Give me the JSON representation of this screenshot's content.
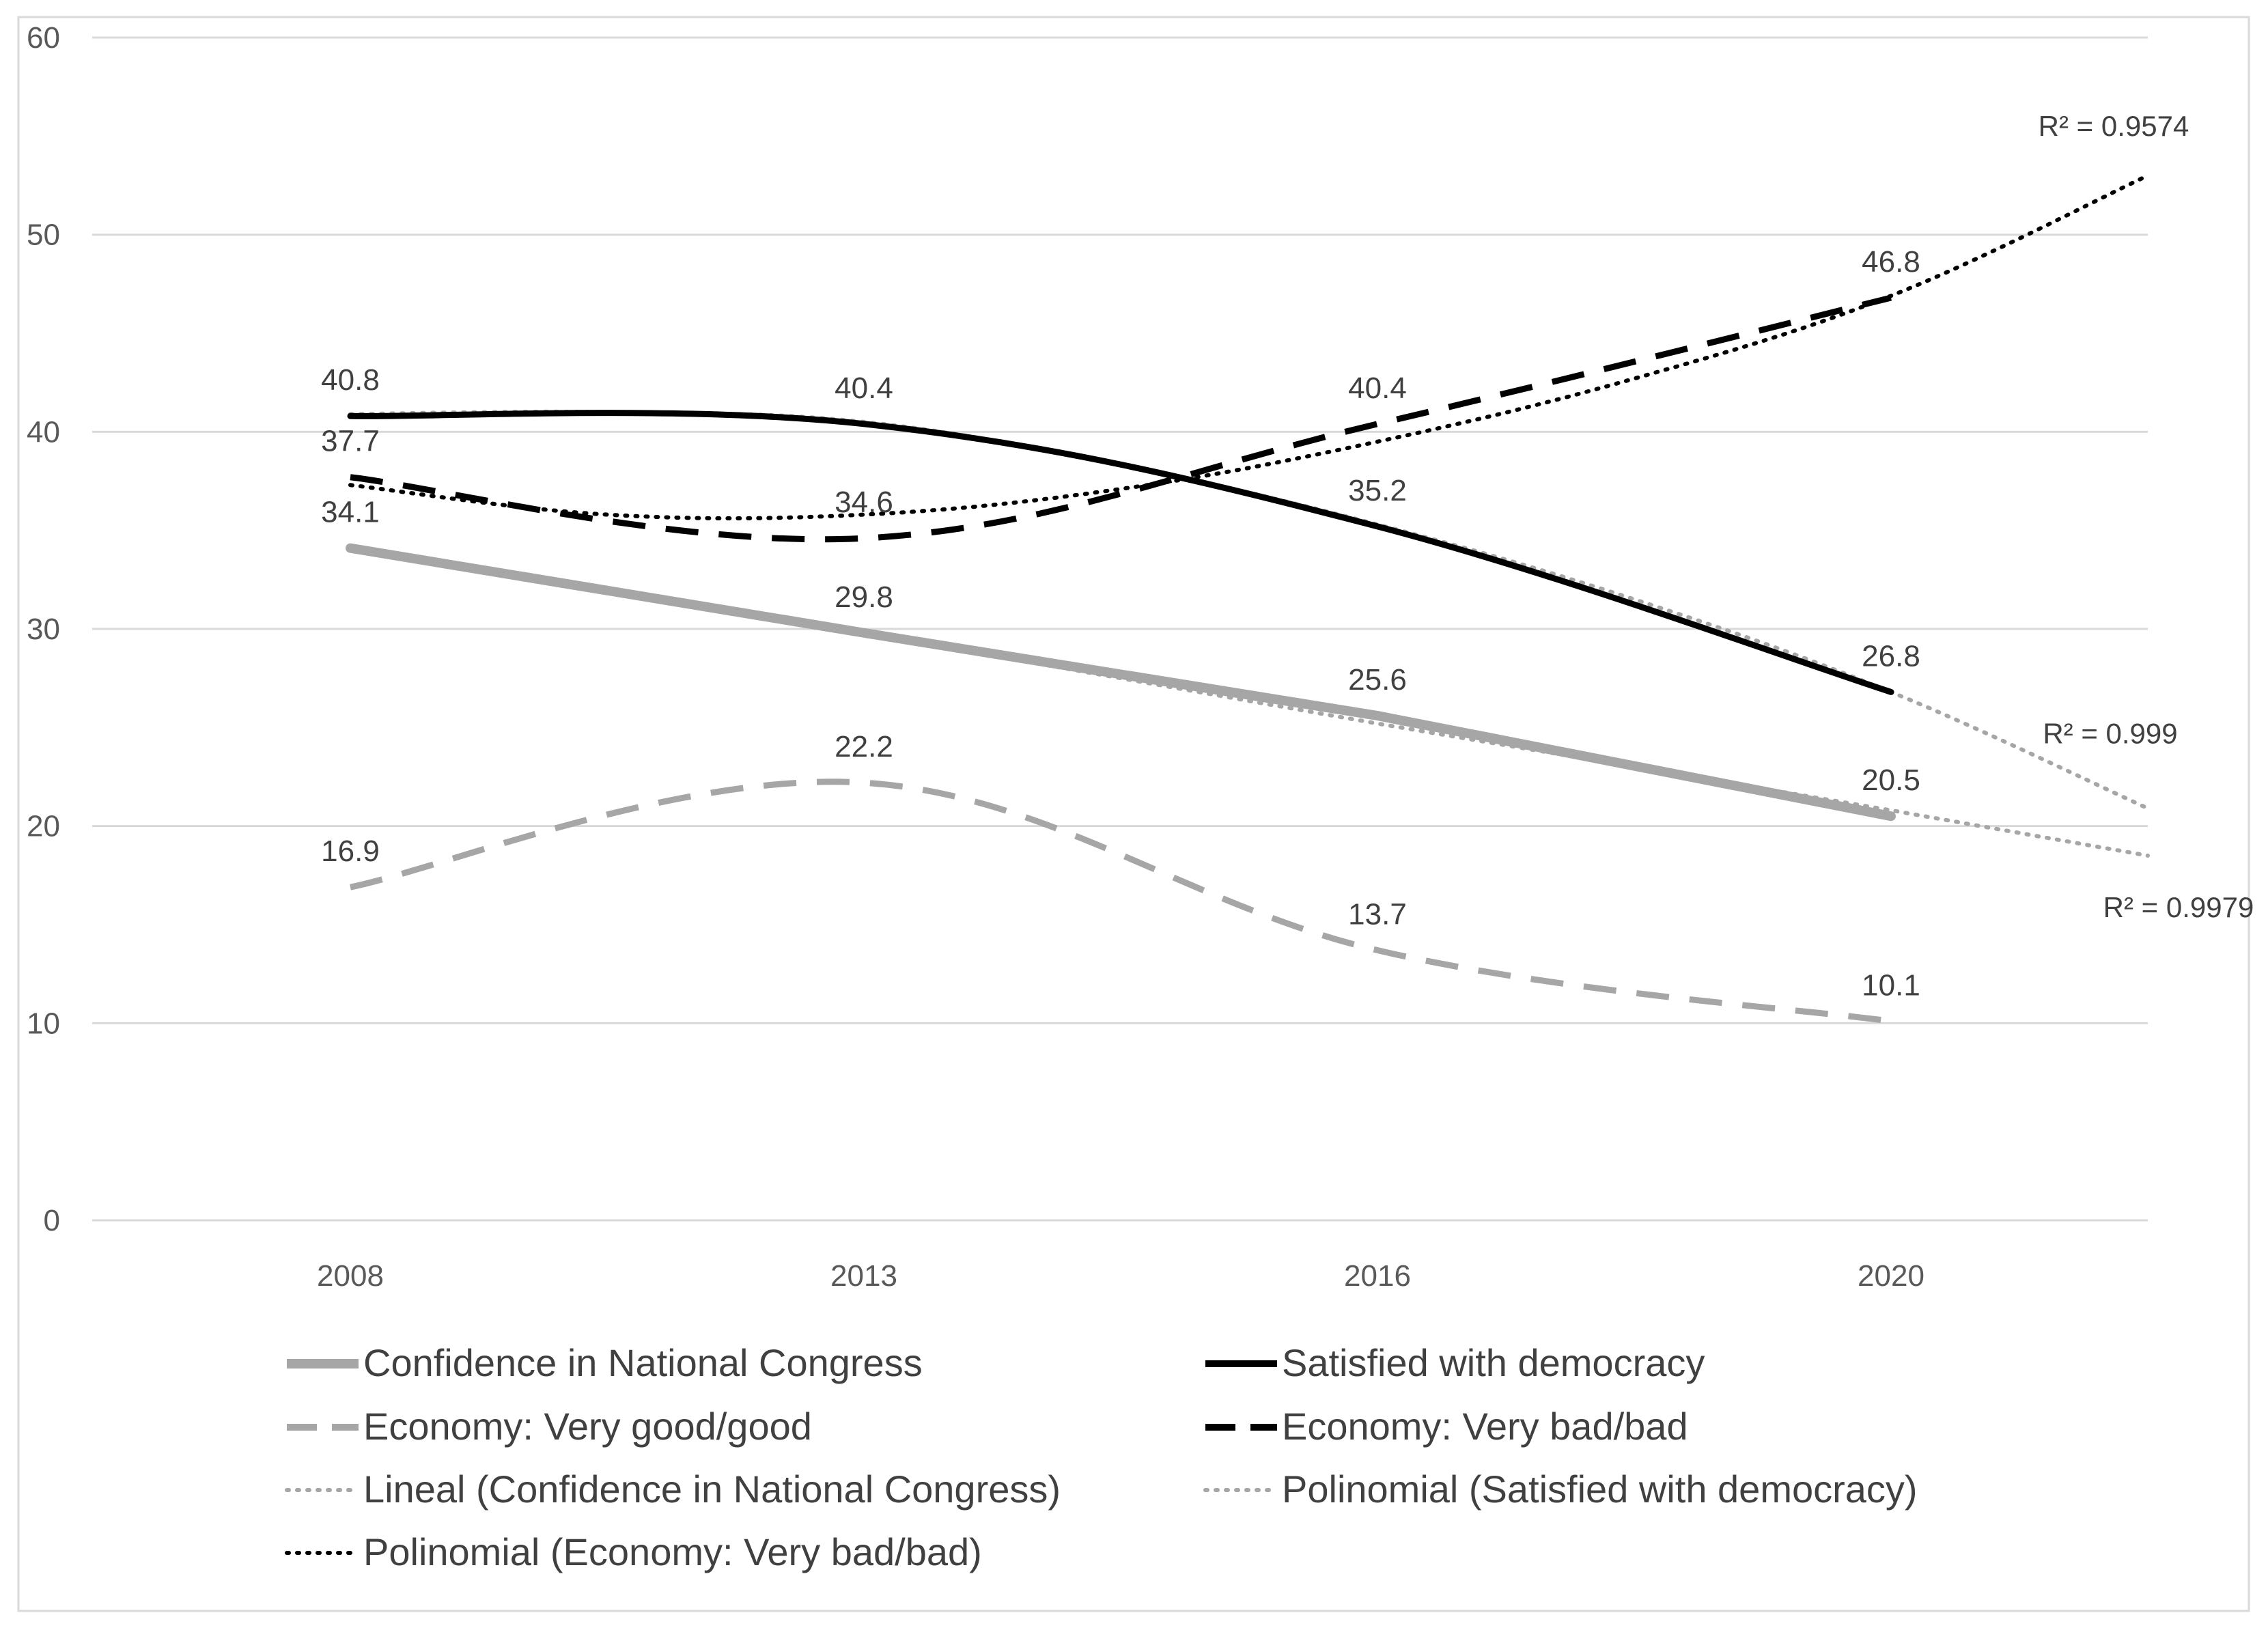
{
  "chart_data": {
    "type": "line",
    "title": "",
    "xlabel": "",
    "ylabel": "",
    "categories": [
      "2008",
      "2013",
      "2016",
      "2020"
    ],
    "ylim": [
      0,
      60
    ],
    "yticks": [
      "0",
      "10",
      "20",
      "30",
      "40",
      "50",
      "60"
    ],
    "grid": "horizontal",
    "legend_position": "bottom",
    "series": [
      {
        "name": "Confidence in National Congress",
        "values": [
          34.1,
          29.8,
          25.6,
          20.5
        ],
        "labels": [
          "34.1",
          "29.8",
          "25.6",
          "20.5"
        ],
        "color": "#a6a6a6",
        "style": "solid-thick"
      },
      {
        "name": "Satisfied with democracy",
        "values": [
          40.8,
          40.4,
          35.2,
          26.8
        ],
        "labels": [
          "40.8",
          "40.4",
          "35.2",
          "26.8"
        ],
        "color": "#000000",
        "style": "solid"
      },
      {
        "name": "Economy: Very good/good",
        "values": [
          16.9,
          22.2,
          13.7,
          10.1
        ],
        "labels": [
          "16.9",
          "22.2",
          "13.7",
          "10.1"
        ],
        "color": "#a6a6a6",
        "style": "dashed"
      },
      {
        "name": "Economy: Very bad/bad",
        "values": [
          37.7,
          34.6,
          40.4,
          46.8
        ],
        "labels": [
          "37.7",
          "34.6",
          "40.4",
          "46.8"
        ],
        "color": "#000000",
        "style": "dashed"
      }
    ],
    "trendlines": [
      {
        "name": "Lineal (Confidence in National Congress)",
        "kind": "linear",
        "x": [
          1,
          2,
          3,
          4,
          4.5
        ],
        "values": [
          34.1,
          29.8,
          25.2,
          20.8,
          18.5
        ],
        "r2_label": "R² = 0.9979",
        "color": "#a6a6a6"
      },
      {
        "name": "Polinomial (Satisfied with democracy)",
        "kind": "polynomial",
        "x": [
          1,
          1.5,
          2,
          2.5,
          3,
          3.5,
          4,
          4.5
        ],
        "values": [
          40.9,
          41.0,
          40.5,
          38.3,
          35.3,
          31.5,
          26.8,
          20.9
        ],
        "r2_label": "R² = 0.999",
        "color": "#a6a6a6"
      },
      {
        "name": "Polinomial (Economy: Very bad/bad)",
        "kind": "polynomial",
        "x": [
          1,
          1.5,
          2,
          2.5,
          3,
          3.5,
          4,
          4.5
        ],
        "values": [
          37.3,
          35.8,
          35.8,
          37.1,
          39.5,
          42.7,
          46.9,
          53.0
        ],
        "r2_label": "R² = 0.9574",
        "color": "#000000"
      }
    ]
  }
}
